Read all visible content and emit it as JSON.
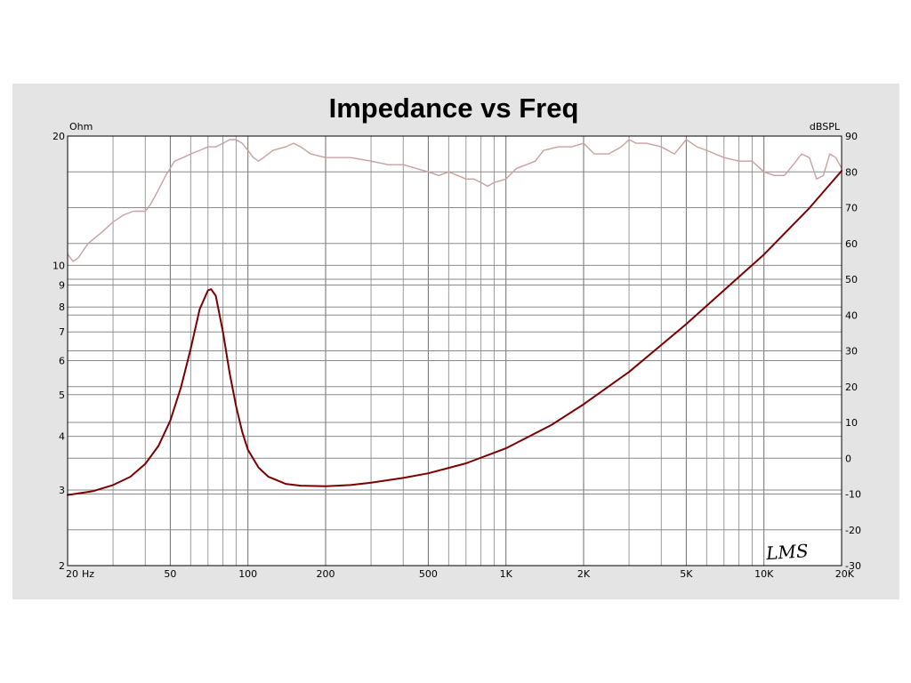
{
  "chart_data": {
    "type": "line",
    "title": "Impedance vs Freq",
    "x_scale": "log",
    "xlim": [
      20,
      20000
    ],
    "x_ticks": [
      {
        "value": 20,
        "label": "20"
      },
      {
        "value": 50,
        "label": "50"
      },
      {
        "value": 100,
        "label": "100"
      },
      {
        "value": 200,
        "label": "200"
      },
      {
        "value": 500,
        "label": "500"
      },
      {
        "value": 1000,
        "label": "1K"
      },
      {
        "value": 2000,
        "label": "2K"
      },
      {
        "value": 5000,
        "label": "5K"
      },
      {
        "value": 10000,
        "label": "10K"
      },
      {
        "value": 20000,
        "label": "20K"
      }
    ],
    "x_unit_label": "Hz",
    "y_left": {
      "label": "Ohm",
      "scale": "log",
      "range": [
        2,
        20
      ],
      "ticks": [
        {
          "value": 2,
          "label": "2"
        },
        {
          "value": 3,
          "label": "3"
        },
        {
          "value": 4,
          "label": "4"
        },
        {
          "value": 5,
          "label": "5"
        },
        {
          "value": 6,
          "label": "6"
        },
        {
          "value": 7,
          "label": "7"
        },
        {
          "value": 8,
          "label": "8"
        },
        {
          "value": 9,
          "label": "9"
        },
        {
          "value": 10,
          "label": "10"
        },
        {
          "value": 20,
          "label": "20"
        }
      ]
    },
    "y_right": {
      "label": "dBSPL",
      "scale": "linear",
      "range": [
        -30,
        90
      ],
      "ticks": [
        {
          "value": 90,
          "label": "90"
        },
        {
          "value": 80,
          "label": "80"
        },
        {
          "value": 70,
          "label": "70"
        },
        {
          "value": 60,
          "label": "60"
        },
        {
          "value": 50,
          "label": "50"
        },
        {
          "value": 40,
          "label": "40"
        },
        {
          "value": 30,
          "label": "30"
        },
        {
          "value": 20,
          "label": "20"
        },
        {
          "value": 10,
          "label": "10"
        },
        {
          "value": 0,
          "label": "0"
        },
        {
          "value": -10,
          "label": "-10"
        },
        {
          "value": -20,
          "label": "-20"
        },
        {
          "value": -30,
          "label": "-30"
        }
      ]
    },
    "grid": true,
    "series": [
      {
        "axis": "left",
        "color": "#7a0000",
        "points": [
          [
            20,
            2.92
          ],
          [
            25,
            2.98
          ],
          [
            30,
            3.08
          ],
          [
            35,
            3.22
          ],
          [
            40,
            3.45
          ],
          [
            45,
            3.8
          ],
          [
            50,
            4.35
          ],
          [
            55,
            5.2
          ],
          [
            60,
            6.4
          ],
          [
            65,
            7.9
          ],
          [
            70,
            8.75
          ],
          [
            72,
            8.8
          ],
          [
            75,
            8.5
          ],
          [
            80,
            7.0
          ],
          [
            85,
            5.6
          ],
          [
            90,
            4.7
          ],
          [
            95,
            4.1
          ],
          [
            100,
            3.72
          ],
          [
            110,
            3.38
          ],
          [
            120,
            3.22
          ],
          [
            140,
            3.1
          ],
          [
            160,
            3.07
          ],
          [
            200,
            3.06
          ],
          [
            250,
            3.08
          ],
          [
            300,
            3.12
          ],
          [
            400,
            3.2
          ],
          [
            500,
            3.28
          ],
          [
            700,
            3.46
          ],
          [
            1000,
            3.75
          ],
          [
            1500,
            4.25
          ],
          [
            2000,
            4.75
          ],
          [
            3000,
            5.65
          ],
          [
            5000,
            7.3
          ],
          [
            7000,
            8.75
          ],
          [
            10000,
            10.6
          ],
          [
            15000,
            13.6
          ],
          [
            20000,
            16.6
          ]
        ]
      },
      {
        "axis": "right",
        "color": "#c9a0a0",
        "points": [
          [
            20,
            57
          ],
          [
            21,
            55
          ],
          [
            22,
            56
          ],
          [
            24,
            60
          ],
          [
            27,
            63
          ],
          [
            30,
            66
          ],
          [
            33,
            68
          ],
          [
            36,
            69
          ],
          [
            40,
            69
          ],
          [
            42,
            71
          ],
          [
            45,
            75
          ],
          [
            48,
            79
          ],
          [
            52,
            83
          ],
          [
            56,
            84
          ],
          [
            60,
            85
          ],
          [
            65,
            86
          ],
          [
            70,
            87
          ],
          [
            75,
            87
          ],
          [
            80,
            88
          ],
          [
            85,
            89
          ],
          [
            90,
            89
          ],
          [
            95,
            88
          ],
          [
            100,
            86
          ],
          [
            105,
            84
          ],
          [
            110,
            83
          ],
          [
            115,
            84
          ],
          [
            125,
            86
          ],
          [
            140,
            87
          ],
          [
            150,
            88
          ],
          [
            160,
            87
          ],
          [
            175,
            85
          ],
          [
            200,
            84
          ],
          [
            250,
            84
          ],
          [
            300,
            83
          ],
          [
            350,
            82
          ],
          [
            400,
            82
          ],
          [
            500,
            80
          ],
          [
            550,
            79
          ],
          [
            600,
            80
          ],
          [
            650,
            79
          ],
          [
            700,
            78
          ],
          [
            750,
            78
          ],
          [
            800,
            77
          ],
          [
            850,
            76
          ],
          [
            900,
            77
          ],
          [
            1000,
            78
          ],
          [
            1100,
            81
          ],
          [
            1200,
            82
          ],
          [
            1300,
            83
          ],
          [
            1400,
            86
          ],
          [
            1600,
            87
          ],
          [
            1800,
            87
          ],
          [
            2000,
            88
          ],
          [
            2200,
            85
          ],
          [
            2500,
            85
          ],
          [
            2800,
            87
          ],
          [
            3000,
            89
          ],
          [
            3200,
            88
          ],
          [
            3500,
            88
          ],
          [
            4000,
            87
          ],
          [
            4500,
            85
          ],
          [
            5000,
            89
          ],
          [
            5500,
            87
          ],
          [
            6000,
            86
          ],
          [
            7000,
            84
          ],
          [
            8000,
            83
          ],
          [
            9000,
            83
          ],
          [
            10000,
            80
          ],
          [
            11000,
            79
          ],
          [
            12000,
            79
          ],
          [
            13000,
            82
          ],
          [
            14000,
            85
          ],
          [
            15000,
            84
          ],
          [
            16000,
            78
          ],
          [
            17000,
            79
          ],
          [
            18000,
            85
          ],
          [
            19000,
            84
          ],
          [
            20000,
            81
          ]
        ]
      }
    ],
    "signature": "LMS"
  }
}
